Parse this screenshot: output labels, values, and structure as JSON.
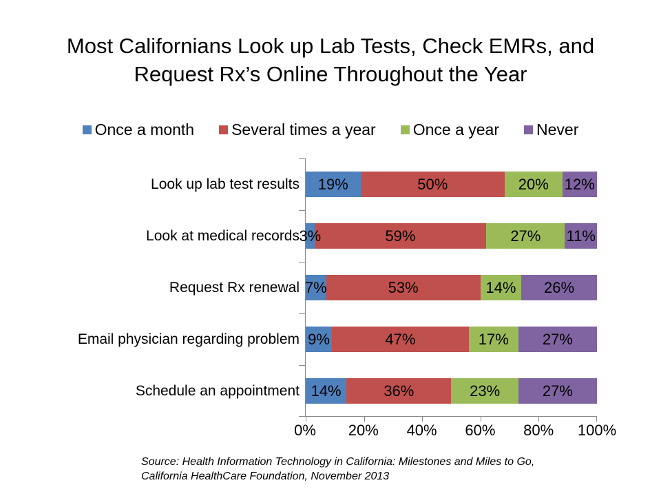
{
  "title_lines": [
    "Most Californians Look up Lab Tests, Check EMRs, and",
    "Request Rx’s Online Throughout the Year"
  ],
  "chart_data": {
    "type": "bar",
    "orientation": "horizontal",
    "stacked": true,
    "title": "Most Californians Look up Lab Tests, Check EMRs, and Request Rx’s Online Throughout the Year",
    "categories": [
      "Look up lab test results",
      "Look at medical records",
      "Request Rx renewal",
      "Email physician regarding problem",
      "Schedule an appointment"
    ],
    "series": [
      {
        "name": "Once a month",
        "color": "#4F81BD",
        "values": [
          19,
          3,
          7,
          9,
          14
        ]
      },
      {
        "name": "Several times a year",
        "color": "#C0504D",
        "values": [
          50,
          59,
          53,
          47,
          36
        ]
      },
      {
        "name": "Once a year",
        "color": "#9BBB59",
        "values": [
          20,
          27,
          14,
          17,
          23
        ]
      },
      {
        "name": "Never",
        "color": "#8064A2",
        "values": [
          12,
          11,
          26,
          27,
          27
        ]
      }
    ],
    "value_suffix": "%",
    "x_ticks": [
      "0%",
      "20%",
      "40%",
      "60%",
      "80%",
      "100%"
    ],
    "xlim": [
      0,
      100
    ],
    "legend_position": "top",
    "grid": false,
    "axis_color": "#898989",
    "data_label_color": "#000000"
  },
  "source": {
    "line1": "Source: Health Information Technology in California: Milestones and Miles to Go,",
    "line2": "California HealthCare Foundation, November 2013"
  }
}
